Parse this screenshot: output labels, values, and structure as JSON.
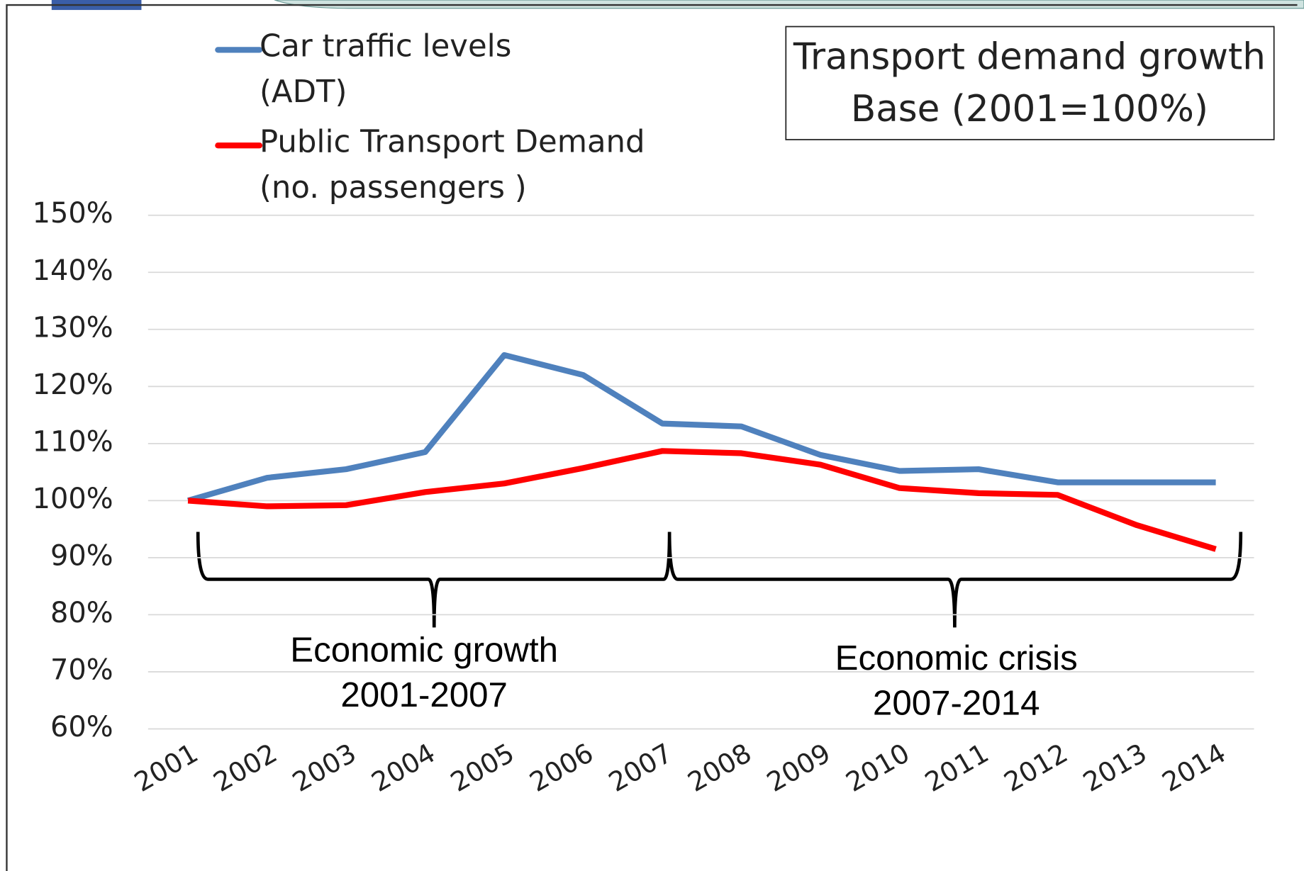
{
  "chart_data": {
    "type": "line",
    "title": "Transport demand growth",
    "subtitle": "Base (2001=100%)",
    "categories": [
      "2001",
      "2002",
      "2003",
      "2004",
      "2005",
      "2006",
      "2007",
      "2008",
      "2009",
      "2010",
      "2011",
      "2012",
      "2013",
      "2014"
    ],
    "series": [
      {
        "name": "Car traffic levels (ADT)",
        "color": "#4f81bd",
        "values": [
          100,
          104,
          105.5,
          108.5,
          125.5,
          122,
          113.5,
          113,
          108,
          105.2,
          105.5,
          103.2,
          103.2,
          103.2
        ]
      },
      {
        "name": "Public Transport Demand (no. passengers )",
        "color": "#ff0000",
        "values": [
          100,
          99,
          99.2,
          101.5,
          103,
          105.7,
          108.7,
          108.3,
          106.3,
          102.2,
          101.3,
          101,
          95.7,
          91.5
        ]
      }
    ],
    "ylim": [
      60,
      150
    ],
    "yticks": [
      {
        "value": 60,
        "label": "60%"
      },
      {
        "value": 70,
        "label": "70%"
      },
      {
        "value": 80,
        "label": "80%"
      },
      {
        "value": 90,
        "label": "90%"
      },
      {
        "value": 100,
        "label": "100%"
      },
      {
        "value": 110,
        "label": "110%"
      },
      {
        "value": 120,
        "label": "120%"
      },
      {
        "value": 130,
        "label": "130%"
      },
      {
        "value": 140,
        "label": "140%"
      },
      {
        "value": 150,
        "label": "150%"
      }
    ],
    "grid": true,
    "legend": "top-left",
    "annotations": [
      "Economic growth 2001-2007",
      "Economic crisis 2007-2014"
    ]
  }
}
